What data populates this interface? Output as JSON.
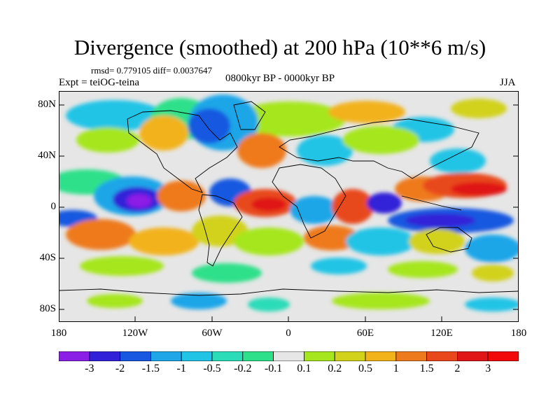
{
  "title": "Divergence (smoothed) at 200 hPa (10**6 m/s)",
  "stats": "rmsd= 0.779105 diff= 0.0037647",
  "experiment": "Expt = teiOG-teina",
  "period": "0800kyr BP - 0000kyr BP",
  "season": "JJA",
  "lat_ticks": [
    "80N",
    "40N",
    "0",
    "40S",
    "80S"
  ],
  "lon_ticks": [
    "180",
    "120W",
    "60W",
    "0",
    "60E",
    "120E",
    "180"
  ],
  "colorbar": {
    "labels": [
      "-3",
      "-2",
      "-1.5",
      "-1",
      "-0.5",
      "-0.2",
      "-0.1",
      "0.1",
      "0.2",
      "0.5",
      "1",
      "1.5",
      "2",
      "3"
    ],
    "colors": [
      "#8c1fe6",
      "#3020d8",
      "#1858e0",
      "#1ea6e8",
      "#22c4e6",
      "#2adcb8",
      "#2ee08a",
      "#e6e6e6",
      "#a6e61e",
      "#d2d21a",
      "#f2b21a",
      "#ee7a1e",
      "#e8481c",
      "#e01616",
      "#f20a0a"
    ]
  },
  "colors": {
    "background": "#e6e6e6",
    "coast": "#000000"
  }
}
